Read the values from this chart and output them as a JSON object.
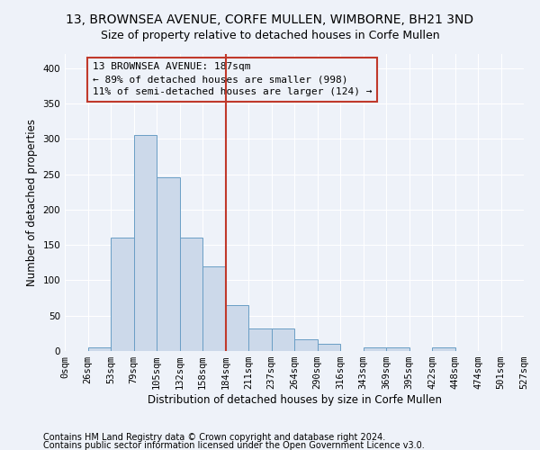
{
  "title": "13, BROWNSEA AVENUE, CORFE MULLEN, WIMBORNE, BH21 3ND",
  "subtitle": "Size of property relative to detached houses in Corfe Mullen",
  "xlabel": "Distribution of detached houses by size in Corfe Mullen",
  "ylabel": "Number of detached properties",
  "footnote1": "Contains HM Land Registry data © Crown copyright and database right 2024.",
  "footnote2": "Contains public sector information licensed under the Open Government Licence v3.0.",
  "bar_values": [
    0,
    5,
    160,
    305,
    246,
    160,
    120,
    65,
    32,
    32,
    16,
    10,
    0,
    5,
    5,
    0,
    5,
    0,
    0,
    0
  ],
  "bin_labels": [
    "0sqm",
    "26sqm",
    "53sqm",
    "79sqm",
    "105sqm",
    "132sqm",
    "158sqm",
    "184sqm",
    "211sqm",
    "237sqm",
    "264sqm",
    "290sqm",
    "316sqm",
    "343sqm",
    "369sqm",
    "395sqm",
    "422sqm",
    "448sqm",
    "474sqm",
    "501sqm",
    "527sqm"
  ],
  "bar_color": "#ccd9ea",
  "bar_edge_color": "#6a9ec5",
  "vline_color": "#c0392b",
  "annotation_text": "13 BROWNSEA AVENUE: 187sqm\n← 89% of detached houses are smaller (998)\n11% of semi-detached houses are larger (124) →",
  "annotation_box_color": "#c0392b",
  "ylim": [
    0,
    420
  ],
  "background_color": "#eef2f9",
  "grid_color": "#ffffff",
  "title_fontsize": 10,
  "subtitle_fontsize": 9,
  "axis_label_fontsize": 8.5,
  "tick_fontsize": 7.5,
  "annotation_fontsize": 8,
  "footnote_fontsize": 7
}
